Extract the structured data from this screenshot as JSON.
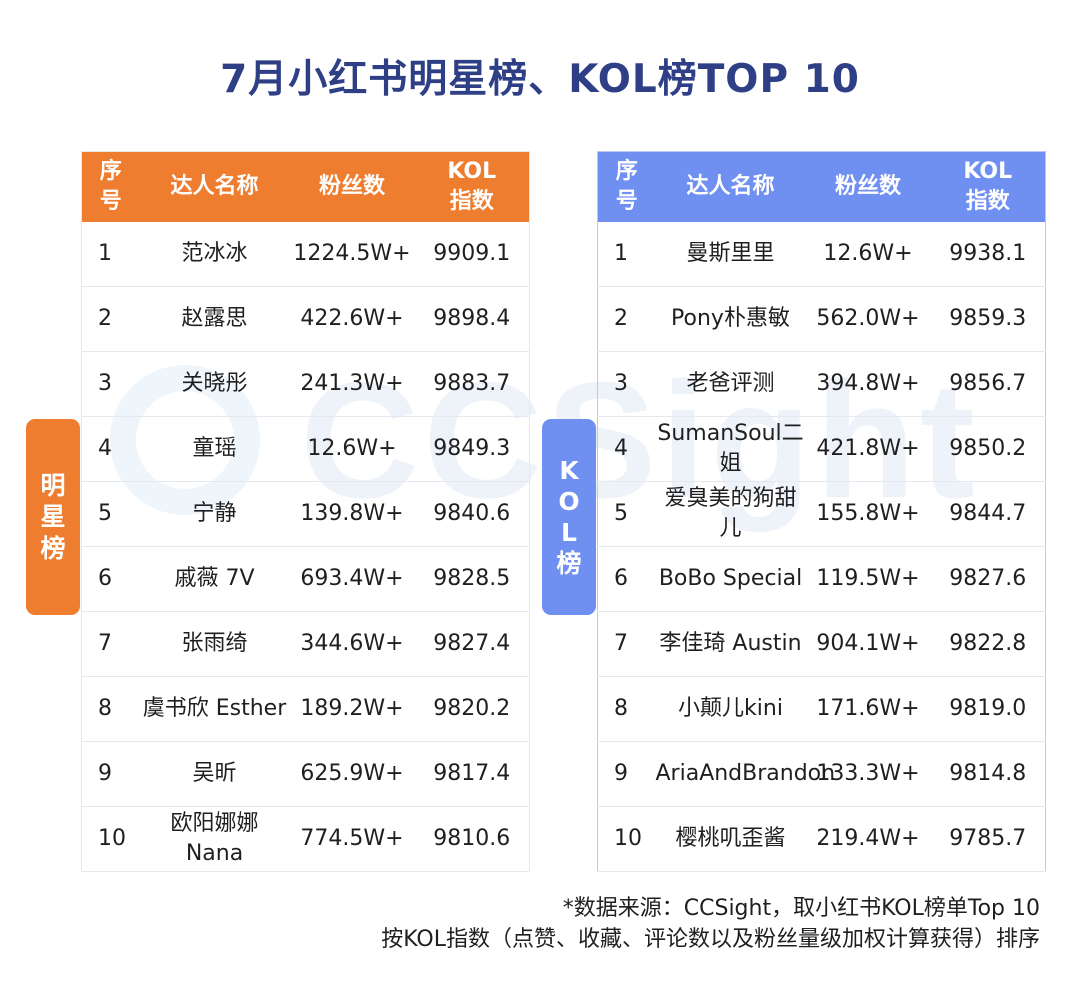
{
  "title": "7月小红书明星榜、KOL榜TOP 10",
  "watermark": "CCSight",
  "colors": {
    "title": "#2f3f86",
    "star_accent": "#ee7d2f",
    "kol_accent": "#6f8ff1"
  },
  "star_board": {
    "tab_label": "明星榜",
    "headers": {
      "rank": "序号",
      "name": "达人名称",
      "fans": "粉丝数",
      "index": "KOL指数"
    },
    "rows": [
      {
        "rank": "1",
        "name": "范冰冰",
        "fans": "1224.5W+",
        "index": "9909.1"
      },
      {
        "rank": "2",
        "name": "赵露思",
        "fans": "422.6W+",
        "index": "9898.4"
      },
      {
        "rank": "3",
        "name": "关晓彤",
        "fans": "241.3W+",
        "index": "9883.7"
      },
      {
        "rank": "4",
        "name": "童瑶",
        "fans": "12.6W+",
        "index": "9849.3"
      },
      {
        "rank": "5",
        "name": "宁静",
        "fans": "139.8W+",
        "index": "9840.6"
      },
      {
        "rank": "6",
        "name": "戚薇 7V",
        "fans": "693.4W+",
        "index": "9828.5"
      },
      {
        "rank": "7",
        "name": "张雨绮",
        "fans": "344.6W+",
        "index": "9827.4"
      },
      {
        "rank": "8",
        "name": "虞书欣 Esther",
        "fans": "189.2W+",
        "index": "9820.2"
      },
      {
        "rank": "9",
        "name": "吴昕",
        "fans": "625.9W+",
        "index": "9817.4"
      },
      {
        "rank": "10",
        "name": "欧阳娜娜 Nana",
        "fans": "774.5W+",
        "index": "9810.6"
      }
    ]
  },
  "kol_board": {
    "tab_label": "KOL榜",
    "headers": {
      "rank": "序号",
      "name": "达人名称",
      "fans": "粉丝数",
      "index": "KOL指数"
    },
    "rows": [
      {
        "rank": "1",
        "name": "曼斯里里",
        "fans": "12.6W+",
        "index": "9938.1"
      },
      {
        "rank": "2",
        "name": "Pony朴惠敏",
        "fans": "562.0W+",
        "index": "9859.3"
      },
      {
        "rank": "3",
        "name": "老爸评测",
        "fans": "394.8W+",
        "index": "9856.7"
      },
      {
        "rank": "4",
        "name": "SumanSoul二姐",
        "fans": "421.8W+",
        "index": "9850.2"
      },
      {
        "rank": "5",
        "name": "爱臭美的狗甜儿",
        "fans": "155.8W+",
        "index": "9844.7"
      },
      {
        "rank": "6",
        "name": "BoBo Special",
        "fans": "119.5W+",
        "index": "9827.6"
      },
      {
        "rank": "7",
        "name": "李佳琦 Austin",
        "fans": "904.1W+",
        "index": "9822.8"
      },
      {
        "rank": "8",
        "name": "小颠儿kini",
        "fans": "171.6W+",
        "index": "9819.0"
      },
      {
        "rank": "9",
        "name": "AriaAndBrandon",
        "fans": "133.3W+",
        "index": "9814.8"
      },
      {
        "rank": "10",
        "name": "樱桃叽歪酱",
        "fans": "219.4W+",
        "index": "9785.7"
      }
    ]
  },
  "footnote": {
    "line1": "*数据来源：CCSight，取小红书KOL榜单Top 10",
    "line2": "按KOL指数（点赞、收藏、评论数以及粉丝量级加权计算获得）排序"
  }
}
